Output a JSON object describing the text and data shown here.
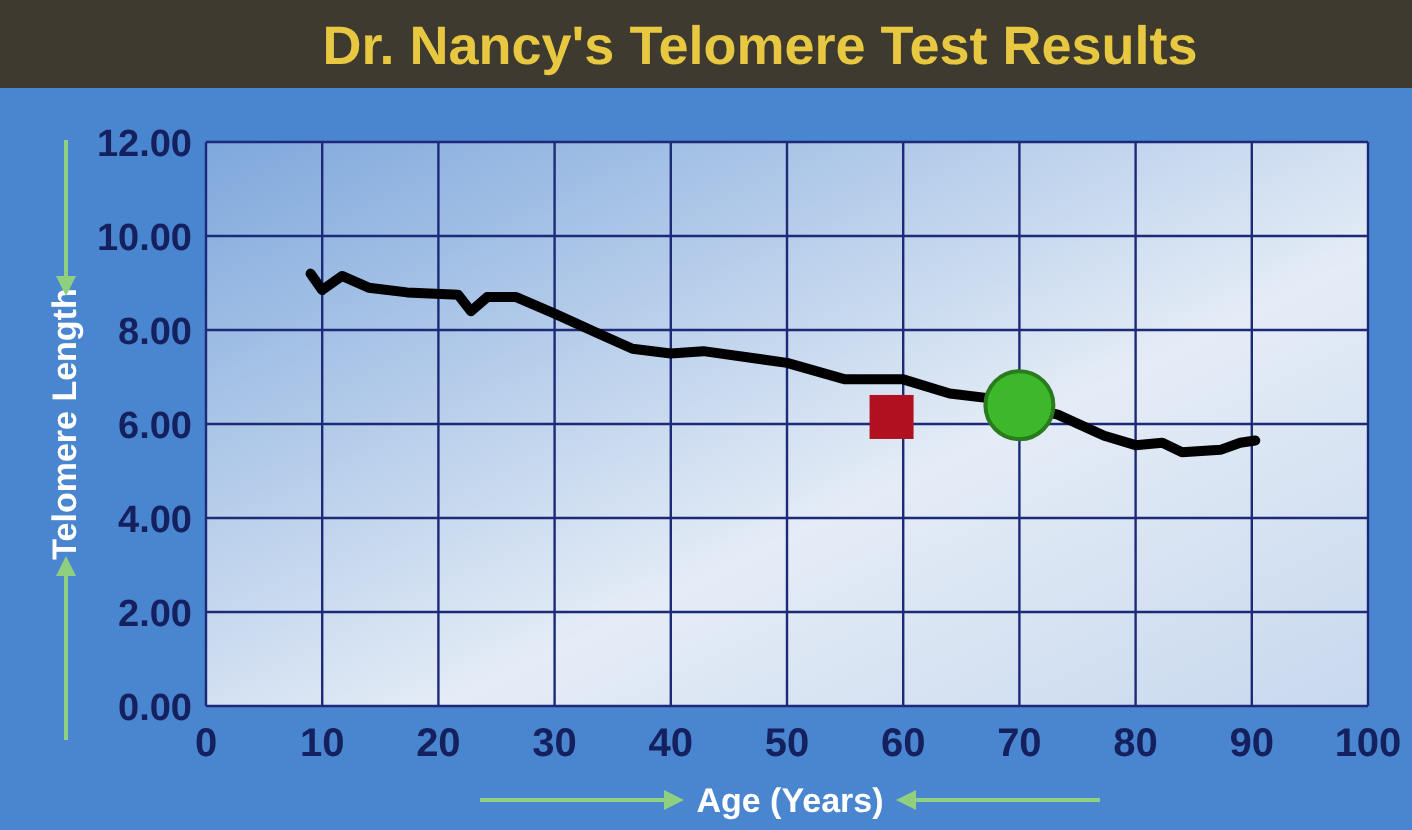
{
  "chart_data": {
    "type": "line",
    "title": "Dr. Nancy's Telomere Test Results",
    "xlabel": "Age (Years)",
    "ylabel": "Telomere Length",
    "xlim": [
      0,
      100
    ],
    "xticks": [
      0,
      10,
      20,
      30,
      40,
      50,
      60,
      70,
      80,
      90,
      100
    ],
    "ylim": [
      0,
      12
    ],
    "yticks": [
      {
        "value": 0,
        "label": "0.00"
      },
      {
        "value": 2,
        "label": "2.00"
      },
      {
        "value": 4,
        "label": "4.00"
      },
      {
        "value": 6,
        "label": "6.00"
      },
      {
        "value": 8,
        "label": "8.00"
      },
      {
        "value": 10,
        "label": "10.00"
      },
      {
        "value": 12,
        "label": "12.00"
      }
    ],
    "grid": true,
    "line_style": "solid",
    "series": [
      {
        "color": "#000000",
        "marker": "none",
        "x": [
          9,
          10,
          11.7,
          14,
          17.3,
          21.7,
          22.8,
          24.2,
          26.7,
          30,
          34,
          36.7,
          40,
          42.8,
          50,
          55,
          60,
          64,
          67.3,
          73.3,
          77.3,
          80,
          82.3,
          84,
          87.3,
          89,
          90.3
        ],
        "values": [
          9.2,
          8.85,
          9.15,
          8.9,
          8.8,
          8.75,
          8.4,
          8.7,
          8.7,
          8.35,
          7.9,
          7.6,
          7.5,
          7.55,
          7.3,
          6.95,
          6.95,
          6.65,
          6.55,
          6.2,
          5.75,
          5.55,
          5.6,
          5.4,
          5.45,
          5.6,
          5.65
        ]
      },
      {
        "type": "scatter",
        "color": "#b01020",
        "marker": "square",
        "x": [
          59
        ],
        "values": [
          6.15
        ]
      },
      {
        "type": "scatter",
        "color": "#3cb82a",
        "marker": "circle",
        "x": [
          70
        ],
        "values": [
          6.4
        ]
      }
    ]
  }
}
